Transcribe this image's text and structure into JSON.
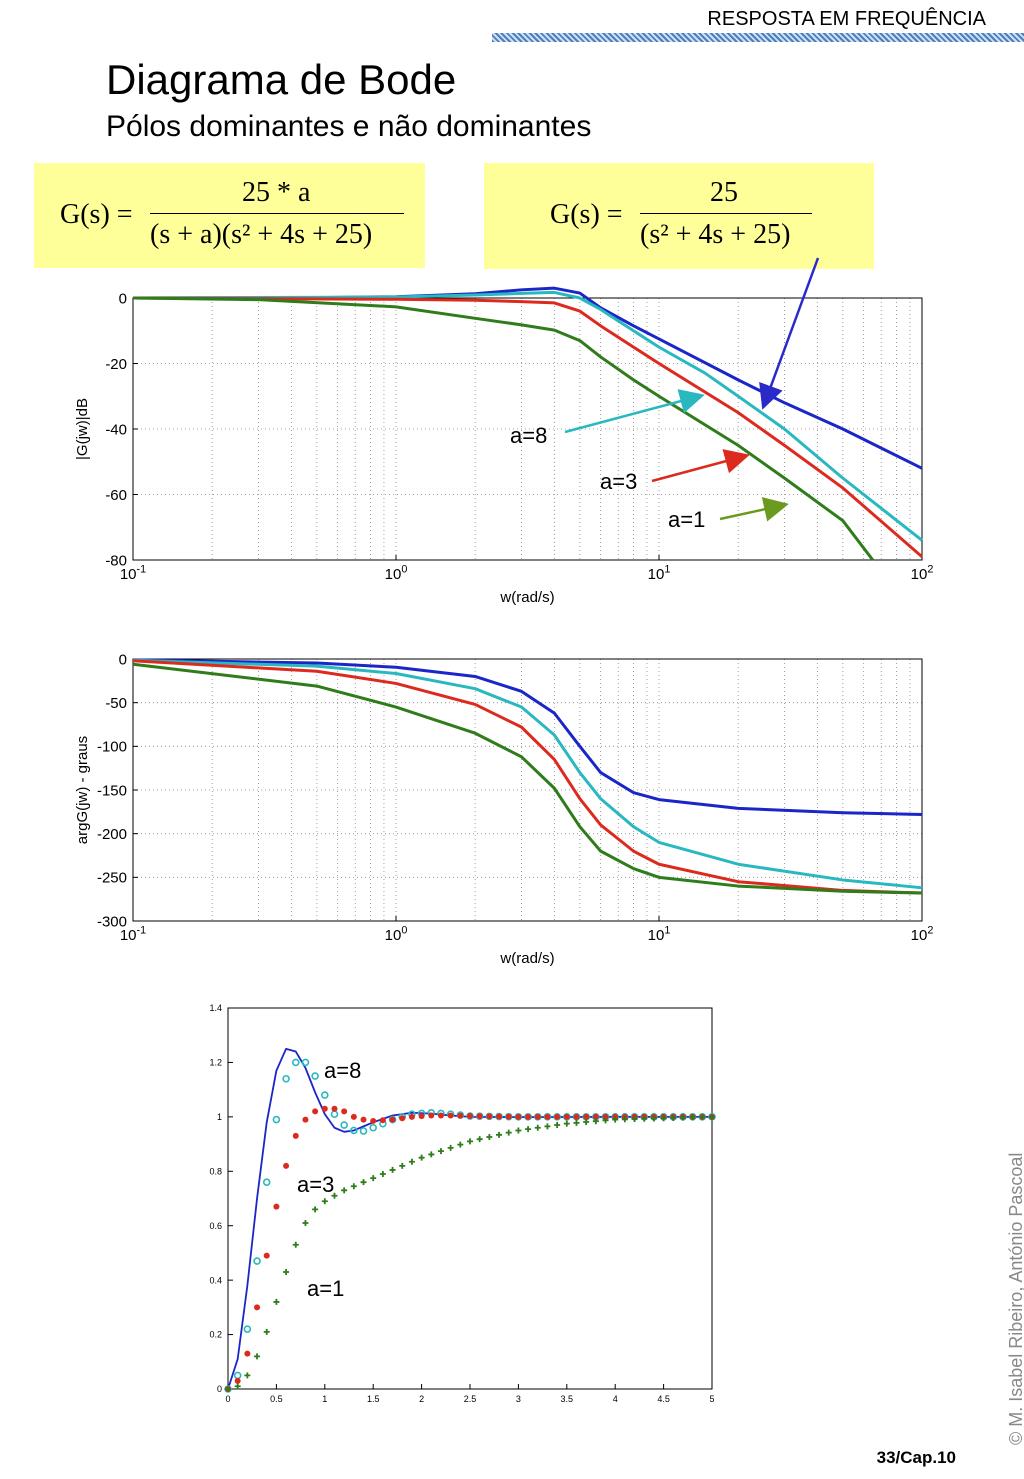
{
  "header": {
    "text": "RESPOSTA EM FREQUÊNCIA"
  },
  "title": "Diagrama de Bode",
  "subtitle": "Pólos dominantes e não dominantes",
  "formulas": {
    "left": {
      "lhs": "G(s) =",
      "numerator": "25 * a",
      "denominator": "(s + a)(s² + 4s + 25)"
    },
    "right": {
      "lhs": "G(s) =",
      "numerator": "25",
      "denominator": "(s² + 4s + 25)"
    }
  },
  "colors": {
    "blue": "#1a26c8",
    "cyan": "#2ab8c0",
    "red": "#dd2a1e",
    "green": "#2e7d1a",
    "olive": "#6a9a20",
    "formula_bg": "#ffff99"
  },
  "annotations": {
    "a8": "a=8",
    "a3": "a=3",
    "a1": "a=1"
  },
  "chart_data": [
    {
      "type": "line",
      "xlabel": "w(rad/s)",
      "ylabel": "|G(jw)|dB",
      "xscale": "log",
      "xlim": [
        0.1,
        100
      ],
      "ylim": [
        -80,
        0
      ],
      "xticks": [
        "10-1",
        "100",
        "101",
        "102"
      ],
      "yticks": [
        "0",
        "-20",
        "-40",
        "-60",
        "-80"
      ],
      "grid": true,
      "series": [
        {
          "name": "",
          "color": "blue",
          "x": [
            0.1,
            0.5,
            1,
            2,
            3,
            4,
            5,
            6,
            8,
            10,
            20,
            30,
            50,
            100
          ],
          "y": [
            0,
            0.1,
            0.4,
            1.3,
            2.5,
            3,
            1.5,
            -3,
            -8.5,
            -12.5,
            -25,
            -32,
            -40,
            -52
          ]
        },
        {
          "name": "a=8",
          "color": "cyan",
          "x": [
            0.1,
            1,
            2,
            3,
            4,
            5,
            6,
            8,
            10,
            15,
            20,
            30,
            50,
            100
          ],
          "y": [
            0,
            0.3,
            0.9,
            1.4,
            1.7,
            0,
            -3.5,
            -10,
            -15,
            -23,
            -30,
            -40,
            -55,
            -74
          ]
        },
        {
          "name": "a=3",
          "color": "red",
          "x": [
            0.1,
            1,
            2,
            3,
            4,
            5,
            6,
            8,
            10,
            20,
            30,
            50,
            100
          ],
          "y": [
            0,
            -0.4,
            -0.7,
            -1.1,
            -1.5,
            -4,
            -8.5,
            -15,
            -20,
            -35,
            -45,
            -58,
            -79
          ]
        },
        {
          "name": "a=1",
          "color": "green",
          "x": [
            0.1,
            0.3,
            1,
            2,
            3,
            4,
            5,
            6,
            8,
            10,
            20,
            30,
            50,
            65
          ],
          "y": [
            0,
            -0.5,
            -2.7,
            -6.2,
            -8.2,
            -9.8,
            -13,
            -18,
            -25,
            -30,
            -45,
            -55,
            -68,
            -80
          ]
        }
      ]
    },
    {
      "type": "line",
      "xlabel": "w(rad/s)",
      "ylabel": "argG(jw) - graus",
      "xscale": "log",
      "xlim": [
        0.1,
        100
      ],
      "ylim": [
        -300,
        0
      ],
      "xticks": [
        "10-1",
        "100",
        "101",
        "102"
      ],
      "yticks": [
        "0",
        "-50",
        "-100",
        "-150",
        "-200",
        "-250",
        "-300"
      ],
      "grid": true,
      "series": [
        {
          "name": "",
          "color": "blue",
          "x": [
            0.1,
            0.5,
            1,
            2,
            3,
            4,
            5,
            6,
            8,
            10,
            20,
            50,
            100
          ],
          "y": [
            -1,
            -4.6,
            -9.5,
            -20,
            -37,
            -62,
            -100,
            -130,
            -153,
            -161,
            -171,
            -176,
            -178
          ]
        },
        {
          "name": "a=8",
          "color": "cyan",
          "x": [
            0.1,
            0.5,
            1,
            2,
            3,
            4,
            5,
            6,
            8,
            10,
            20,
            50,
            100
          ],
          "y": [
            -1.5,
            -8.2,
            -16.6,
            -34,
            -55,
            -87,
            -130,
            -160,
            -192,
            -210,
            -235,
            -253,
            -262
          ]
        },
        {
          "name": "a=3",
          "color": "red",
          "x": [
            0.1,
            0.5,
            1,
            2,
            3,
            4,
            5,
            6,
            8,
            10,
            20,
            50,
            100
          ],
          "y": [
            -2,
            -14,
            -28,
            -52,
            -78,
            -115,
            -160,
            -190,
            -220,
            -235,
            -255,
            -265,
            -268
          ]
        },
        {
          "name": "a=1",
          "color": "green",
          "x": [
            0.1,
            0.5,
            1,
            2,
            3,
            4,
            5,
            6,
            8,
            10,
            20,
            50,
            100
          ],
          "y": [
            -6,
            -31,
            -55,
            -85,
            -112,
            -148,
            -192,
            -220,
            -240,
            -250,
            -260,
            -266,
            -268
          ]
        }
      ]
    },
    {
      "type": "line",
      "xlim": [
        0,
        5
      ],
      "ylim": [
        0,
        1.4
      ],
      "xticks": [
        "0",
        "0.5",
        "1",
        "1.5",
        "2",
        "2.5",
        "3",
        "3.5",
        "4",
        "4.5",
        "5"
      ],
      "yticks": [
        "0",
        "0.2",
        "0.4",
        "0.6",
        "0.8",
        "1",
        "1.2",
        "1.4"
      ],
      "grid": false,
      "series": [
        {
          "name": "",
          "color": "blue",
          "marker": "line",
          "x": [
            0,
            0.1,
            0.2,
            0.3,
            0.4,
            0.5,
            0.6,
            0.7,
            0.8,
            0.9,
            1.0,
            1.1,
            1.2,
            1.3,
            1.4,
            1.5,
            1.7,
            1.9,
            2.1,
            2.3,
            2.5,
            3,
            4,
            5
          ],
          "y": [
            0,
            0.11,
            0.38,
            0.7,
            0.98,
            1.17,
            1.25,
            1.24,
            1.18,
            1.09,
            1.01,
            0.96,
            0.945,
            0.95,
            0.965,
            0.98,
            1.005,
            1.015,
            1.012,
            1.005,
            1.0,
            0.999,
            1.0,
            1.0
          ]
        },
        {
          "name": "a=8",
          "color": "cyan",
          "marker": "circle",
          "x": [
            0,
            0.1,
            0.2,
            0.3,
            0.4,
            0.5,
            0.6,
            0.7,
            0.8,
            0.9,
            1.0,
            1.1,
            1.2,
            1.3,
            1.4,
            1.5,
            1.7,
            1.9,
            2.1,
            2.3,
            2.5,
            3,
            3.5,
            4,
            4.5,
            5
          ],
          "y": [
            0,
            0.05,
            0.22,
            0.47,
            0.76,
            0.99,
            1.14,
            1.2,
            1.2,
            1.15,
            1.08,
            1.01,
            0.97,
            0.95,
            0.948,
            0.96,
            0.99,
            1.01,
            1.015,
            1.01,
            1.003,
            1.0,
            1.0,
            1.0,
            1.0,
            1.0
          ]
        },
        {
          "name": "a=3",
          "color": "red",
          "marker": "dot",
          "x": [
            0,
            0.1,
            0.2,
            0.3,
            0.4,
            0.5,
            0.6,
            0.7,
            0.8,
            0.9,
            1.0,
            1.1,
            1.2,
            1.3,
            1.4,
            1.5,
            1.7,
            1.9,
            2.1,
            2.3,
            2.5,
            3,
            3.5,
            4,
            4.5,
            5
          ],
          "y": [
            0,
            0.03,
            0.13,
            0.3,
            0.49,
            0.67,
            0.82,
            0.93,
            0.99,
            1.02,
            1.03,
            1.03,
            1.02,
            1.0,
            0.99,
            0.985,
            0.99,
            1.0,
            1.005,
            1.005,
            1.003,
            1.0,
            1.0,
            1.0,
            1.0,
            1.0
          ]
        },
        {
          "name": "a=1",
          "color": "green",
          "marker": "plus",
          "x": [
            0,
            0.1,
            0.2,
            0.3,
            0.4,
            0.5,
            0.6,
            0.7,
            0.8,
            0.9,
            1.0,
            1.2,
            1.4,
            1.6,
            1.8,
            2.0,
            2.5,
            3.0,
            3.5,
            4.0,
            4.5,
            5.0
          ],
          "y": [
            0,
            0.01,
            0.05,
            0.12,
            0.21,
            0.32,
            0.43,
            0.53,
            0.61,
            0.66,
            0.69,
            0.73,
            0.76,
            0.79,
            0.82,
            0.85,
            0.91,
            0.95,
            0.975,
            0.99,
            0.995,
            1.0
          ]
        }
      ]
    }
  ],
  "footer": {
    "copyright": "© M. Isabel Ribeiro, António Pascoal",
    "page": "33/Cap.10"
  }
}
